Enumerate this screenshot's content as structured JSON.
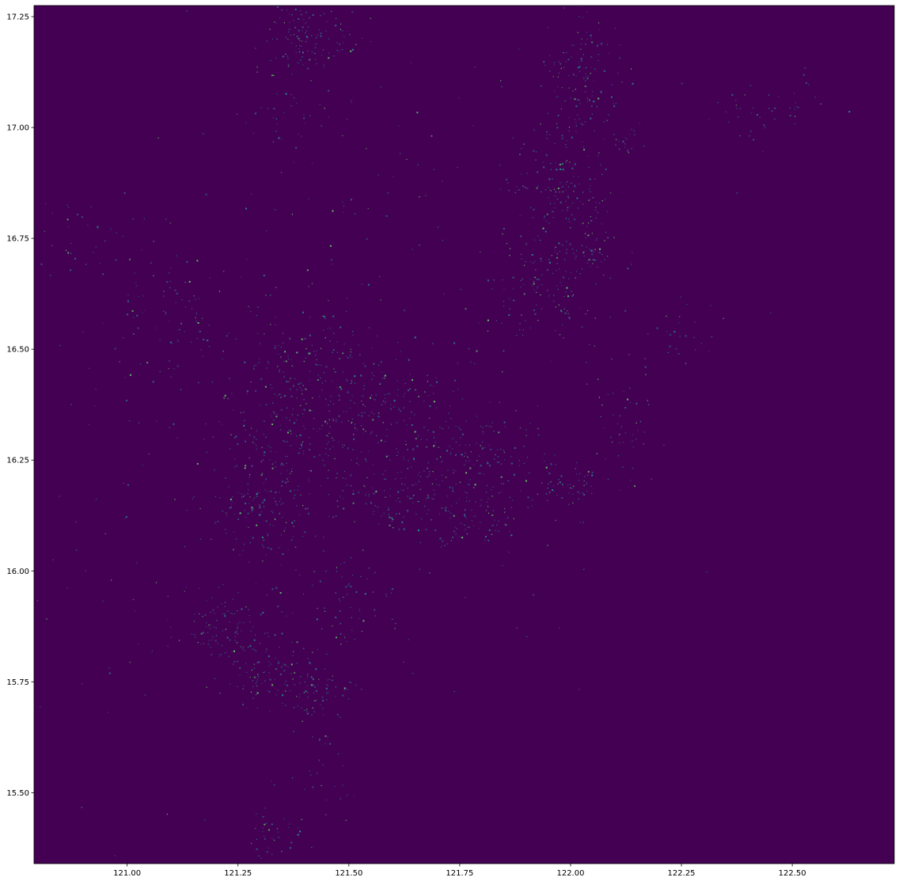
{
  "chart_data": {
    "type": "heatmap",
    "title": "",
    "xlabel": "",
    "ylabel": "",
    "xlim": [
      120.79,
      122.73
    ],
    "ylim": [
      15.34,
      17.275
    ],
    "colormap": "viridis",
    "background_color": "#440154",
    "point_colors": [
      "#3b528b",
      "#21918c",
      "#5ec962",
      "#2c728e",
      "#31688e"
    ],
    "x_ticks": [
      {
        "value": 121.0,
        "label": "121.00"
      },
      {
        "value": 121.25,
        "label": "121.25"
      },
      {
        "value": 121.5,
        "label": "121.50"
      },
      {
        "value": 121.75,
        "label": "121.75"
      },
      {
        "value": 122.0,
        "label": "122.00"
      },
      {
        "value": 122.25,
        "label": "122.25"
      },
      {
        "value": 122.5,
        "label": "122.50"
      }
    ],
    "y_ticks": [
      {
        "value": 15.5,
        "label": "15.50"
      },
      {
        "value": 15.75,
        "label": "15.75"
      },
      {
        "value": 16.0,
        "label": "16.00"
      },
      {
        "value": 16.25,
        "label": "16.25"
      },
      {
        "value": 16.5,
        "label": "16.50"
      },
      {
        "value": 16.75,
        "label": "16.75"
      },
      {
        "value": 17.0,
        "label": "17.00"
      },
      {
        "value": 17.25,
        "label": "17.25"
      }
    ],
    "clusters": [
      {
        "x": 121.42,
        "y": 17.2,
        "sx": 0.05,
        "sy": 0.04,
        "n": 120
      },
      {
        "x": 121.35,
        "y": 17.05,
        "sx": 0.06,
        "sy": 0.05,
        "n": 40
      },
      {
        "x": 122.03,
        "y": 17.1,
        "sx": 0.04,
        "sy": 0.08,
        "n": 140
      },
      {
        "x": 121.98,
        "y": 16.85,
        "sx": 0.05,
        "sy": 0.07,
        "n": 150
      },
      {
        "x": 121.95,
        "y": 16.65,
        "sx": 0.06,
        "sy": 0.06,
        "n": 120
      },
      {
        "x": 122.05,
        "y": 16.72,
        "sx": 0.03,
        "sy": 0.03,
        "n": 40
      },
      {
        "x": 122.12,
        "y": 16.97,
        "sx": 0.02,
        "sy": 0.02,
        "n": 20
      },
      {
        "x": 122.45,
        "y": 17.05,
        "sx": 0.06,
        "sy": 0.04,
        "n": 45
      },
      {
        "x": 121.4,
        "y": 16.45,
        "sx": 0.1,
        "sy": 0.07,
        "n": 140
      },
      {
        "x": 121.55,
        "y": 16.35,
        "sx": 0.12,
        "sy": 0.08,
        "n": 220
      },
      {
        "x": 121.35,
        "y": 16.28,
        "sx": 0.08,
        "sy": 0.06,
        "n": 120
      },
      {
        "x": 121.3,
        "y": 16.12,
        "sx": 0.06,
        "sy": 0.06,
        "n": 130
      },
      {
        "x": 121.8,
        "y": 16.28,
        "sx": 0.07,
        "sy": 0.05,
        "n": 110
      },
      {
        "x": 121.78,
        "y": 16.12,
        "sx": 0.06,
        "sy": 0.05,
        "n": 110
      },
      {
        "x": 121.6,
        "y": 16.17,
        "sx": 0.06,
        "sy": 0.04,
        "n": 90
      },
      {
        "x": 121.99,
        "y": 16.19,
        "sx": 0.04,
        "sy": 0.03,
        "n": 60
      },
      {
        "x": 122.12,
        "y": 16.33,
        "sx": 0.04,
        "sy": 0.07,
        "n": 50
      },
      {
        "x": 122.25,
        "y": 16.55,
        "sx": 0.04,
        "sy": 0.03,
        "n": 25
      },
      {
        "x": 121.1,
        "y": 16.58,
        "sx": 0.07,
        "sy": 0.08,
        "n": 80
      },
      {
        "x": 120.9,
        "y": 16.75,
        "sx": 0.05,
        "sy": 0.05,
        "n": 30
      },
      {
        "x": 121.22,
        "y": 15.87,
        "sx": 0.07,
        "sy": 0.04,
        "n": 110
      },
      {
        "x": 121.33,
        "y": 15.76,
        "sx": 0.06,
        "sy": 0.04,
        "n": 100
      },
      {
        "x": 121.42,
        "y": 15.72,
        "sx": 0.05,
        "sy": 0.03,
        "n": 60
      },
      {
        "x": 121.5,
        "y": 15.93,
        "sx": 0.06,
        "sy": 0.06,
        "n": 60
      },
      {
        "x": 121.33,
        "y": 15.4,
        "sx": 0.04,
        "sy": 0.03,
        "n": 40
      },
      {
        "x": 121.45,
        "y": 15.55,
        "sx": 0.05,
        "sy": 0.06,
        "n": 25
      },
      {
        "x": 121.75,
        "y": 16.65,
        "sx": 0.25,
        "sy": 0.35,
        "n": 160
      },
      {
        "x": 121.2,
        "y": 16.3,
        "sx": 0.3,
        "sy": 0.4,
        "n": 220
      }
    ]
  }
}
